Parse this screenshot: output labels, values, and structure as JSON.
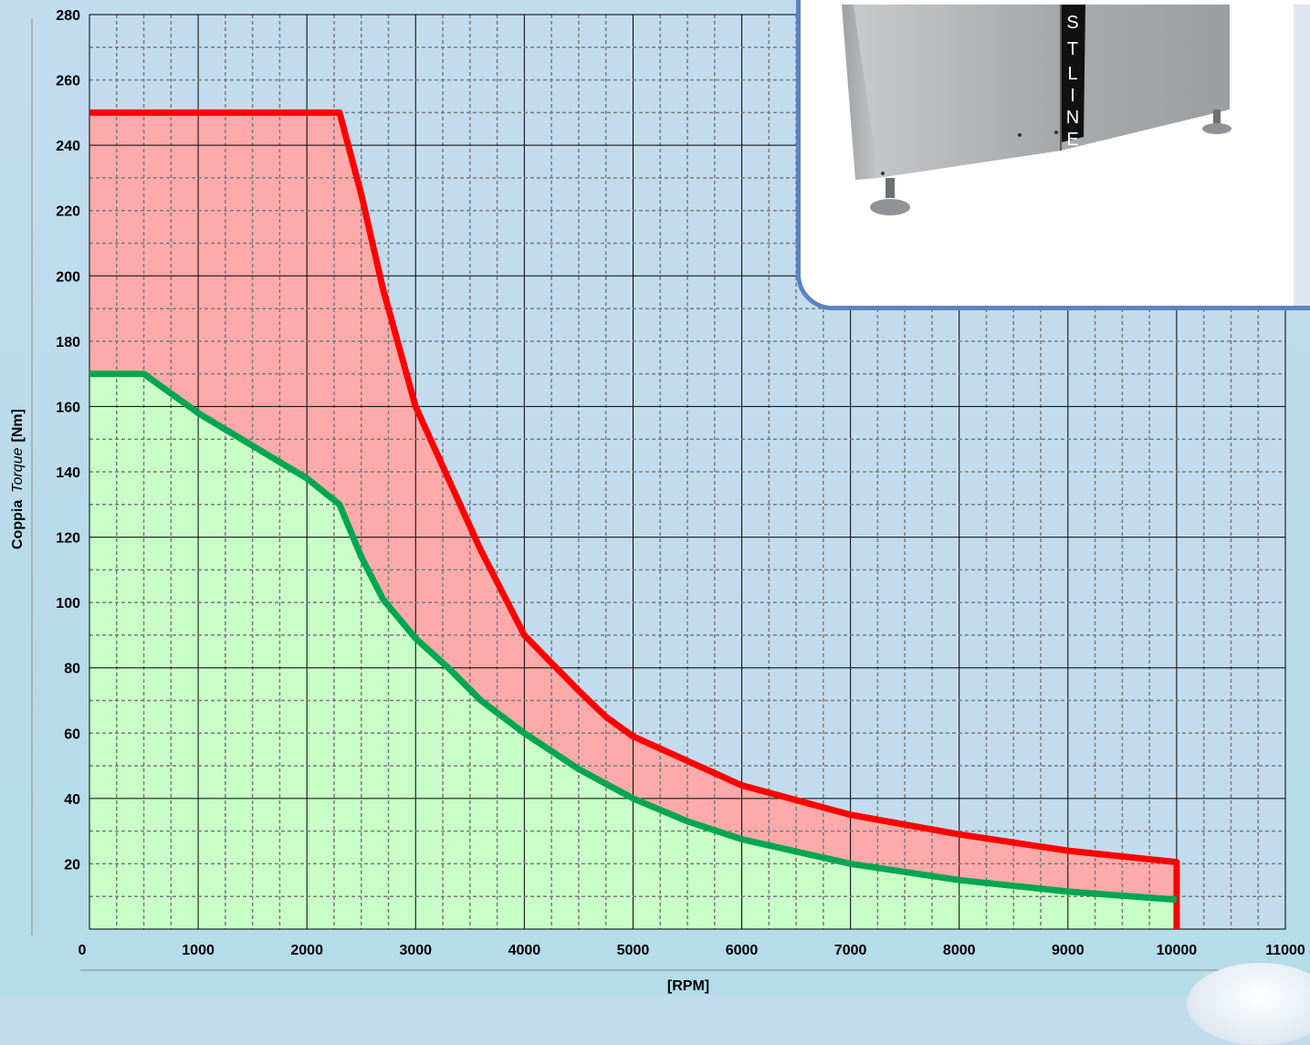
{
  "chart_data": {
    "type": "area",
    "xlabel": "[RPM]",
    "ylabel": {
      "bold_part": "Coppia",
      "italic_part": "Torque",
      "unit": "[Nm]"
    },
    "xlim": [
      0,
      11000
    ],
    "ylim": [
      0,
      280
    ],
    "x_ticks": [
      0,
      1000,
      2000,
      3000,
      4000,
      5000,
      6000,
      7000,
      8000,
      9000,
      10000,
      11000
    ],
    "y_ticks": [
      20,
      40,
      60,
      80,
      100,
      120,
      140,
      160,
      180,
      200,
      220,
      240,
      260,
      280
    ],
    "grid": true,
    "series": [
      {
        "color": "#ff0000",
        "fill": "#ffaaaa",
        "x": [
          0,
          2300,
          2500,
          2700,
          3000,
          3300,
          3600,
          4000,
          4500,
          4750,
          5000,
          6000,
          7000,
          8000,
          9000,
          10000,
          10000
        ],
        "y": [
          250,
          250,
          225,
          196,
          160,
          138,
          116,
          90,
          73,
          65,
          59,
          44,
          35,
          29,
          24,
          20.5,
          0
        ]
      },
      {
        "color": "#00a651",
        "fill": "#c8ffc8",
        "x": [
          0,
          500,
          1000,
          1500,
          2000,
          2300,
          2500,
          2700,
          3000,
          3300,
          3600,
          4000,
          4500,
          5000,
          5500,
          6000,
          7000,
          8000,
          9000,
          10000
        ],
        "y": [
          170,
          170,
          158,
          148,
          138,
          130,
          114,
          101,
          89,
          80,
          70,
          60,
          49,
          40,
          33,
          27.5,
          20,
          15,
          11.5,
          9
        ]
      }
    ]
  },
  "inset": {
    "brand_letters": [
      "S",
      "T",
      "L",
      "I",
      "N",
      "E"
    ]
  }
}
